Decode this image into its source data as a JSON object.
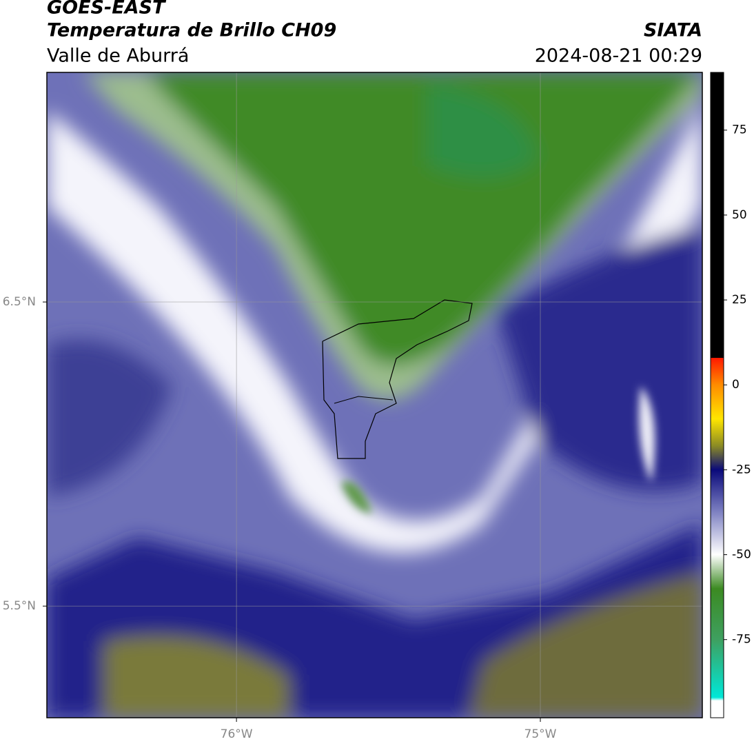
{
  "map": {
    "title": "GOES-EAST",
    "subtitle": "Temperatura de Brillo CH09",
    "region": "Valle de Aburrá",
    "source": "SIATA",
    "datetime": "2024-08-21 00:29",
    "xlim": [
      -76.624,
      -74.467
    ],
    "ylim": [
      5.133,
      7.255
    ],
    "xticks": [
      {
        "value": -76,
        "label": "76°W"
      },
      {
        "value": -75,
        "label": "75°W"
      }
    ],
    "yticks": [
      {
        "value": 6.5,
        "label": "6.5°N"
      },
      {
        "value": 5.5,
        "label": "5.5°N"
      }
    ],
    "grid": true,
    "colorbar": {
      "lim": [
        -98,
        92
      ],
      "ticks": [
        75,
        50,
        25,
        0,
        -25,
        -50,
        -75
      ],
      "stops": [
        {
          "value": 92,
          "color": "#000000"
        },
        {
          "value": 8,
          "color": "#000000"
        },
        {
          "value": 7.9,
          "color": "#ff1a00"
        },
        {
          "value": 0,
          "color": "#ff8c00"
        },
        {
          "value": -10,
          "color": "#ffe600"
        },
        {
          "value": -18,
          "color": "#8a8a25"
        },
        {
          "value": -25,
          "color": "#0a0a7a"
        },
        {
          "value": -37,
          "color": "#7a7dc0"
        },
        {
          "value": -50,
          "color": "#ffffff"
        },
        {
          "value": -60,
          "color": "#3c8a22"
        },
        {
          "value": -75,
          "color": "#3ea060"
        },
        {
          "value": -92,
          "color": "#00e8d8"
        },
        {
          "value": -93,
          "color": "#ffffff"
        },
        {
          "value": -98,
          "color": "#ffffff"
        }
      ]
    }
  }
}
